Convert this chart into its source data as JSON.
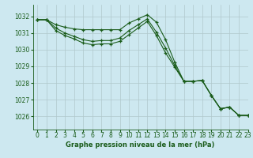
{
  "title": "Graphe pression niveau de la mer (hPa)",
  "bg_color": "#cde8f0",
  "grid_color": "#b0c8cc",
  "line_color": "#1a5c1a",
  "xlim": [
    -0.5,
    23
  ],
  "ylim": [
    1025.2,
    1032.7
  ],
  "xticks": [
    0,
    1,
    2,
    3,
    4,
    5,
    6,
    7,
    8,
    9,
    10,
    11,
    12,
    13,
    14,
    15,
    16,
    17,
    18,
    19,
    20,
    21,
    22,
    23
  ],
  "yticks": [
    1026,
    1027,
    1028,
    1029,
    1030,
    1031,
    1032
  ],
  "series1_x": [
    0,
    1,
    2,
    3,
    4,
    5,
    6,
    7,
    8,
    9,
    10,
    11,
    12,
    13,
    14,
    15,
    16,
    17,
    18,
    19,
    20,
    21,
    22,
    23
  ],
  "series1_y": [
    1031.8,
    1031.8,
    1031.5,
    1031.35,
    1031.25,
    1031.2,
    1031.2,
    1031.2,
    1031.2,
    1031.2,
    1031.6,
    1031.85,
    1032.1,
    1031.65,
    1030.6,
    1029.25,
    1028.1,
    1028.1,
    1028.15,
    1027.25,
    1026.45,
    1026.55,
    1026.05,
    1026.05
  ],
  "series2_x": [
    0,
    1,
    2,
    3,
    4,
    5,
    6,
    7,
    8,
    9,
    10,
    11,
    12,
    13,
    14,
    15,
    16,
    17,
    18,
    19,
    20,
    21,
    22,
    23
  ],
  "series2_y": [
    1031.8,
    1031.8,
    1031.3,
    1031.0,
    1030.8,
    1030.6,
    1030.5,
    1030.55,
    1030.55,
    1030.7,
    1031.15,
    1031.5,
    1031.85,
    1031.05,
    1030.1,
    1029.05,
    1028.1,
    1028.1,
    1028.15,
    1027.25,
    1026.45,
    1026.55,
    1026.05,
    1026.05
  ],
  "series3_x": [
    0,
    1,
    2,
    3,
    4,
    5,
    6,
    7,
    8,
    9,
    10,
    11,
    12,
    13,
    14,
    15,
    16,
    17,
    18,
    19,
    20,
    21,
    22,
    23
  ],
  "series3_y": [
    1031.8,
    1031.8,
    1031.15,
    1030.85,
    1030.65,
    1030.4,
    1030.3,
    1030.35,
    1030.35,
    1030.5,
    1030.9,
    1031.3,
    1031.7,
    1030.85,
    1029.8,
    1028.95,
    1028.1,
    1028.1,
    1028.15,
    1027.25,
    1026.45,
    1026.55,
    1026.05,
    1026.05
  ],
  "title_fontsize": 6,
  "tick_fontsize": 5.5
}
